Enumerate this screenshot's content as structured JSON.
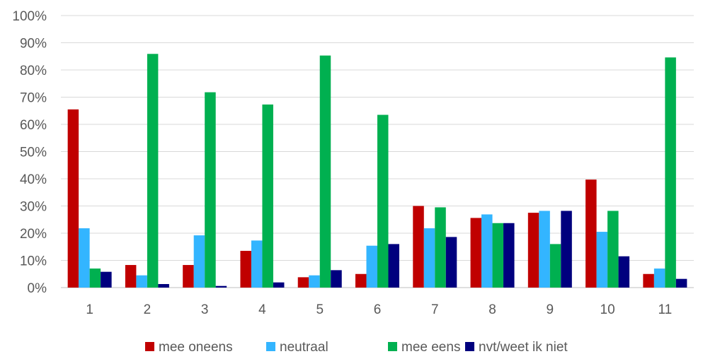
{
  "chart_data": {
    "type": "bar",
    "categories": [
      "1",
      "2",
      "3",
      "4",
      "5",
      "6",
      "7",
      "8",
      "9",
      "10",
      "11"
    ],
    "series": [
      {
        "name": "mee oneens",
        "color": "#c00000",
        "values": [
          65.5,
          8.3,
          8.3,
          13.5,
          3.8,
          5.0,
          30.0,
          25.6,
          27.5,
          39.7,
          5.0
        ]
      },
      {
        "name": "neutraal",
        "color": "#33b5ff",
        "values": [
          21.8,
          4.5,
          19.2,
          17.3,
          4.5,
          15.4,
          21.8,
          26.9,
          28.2,
          20.5,
          7.0
        ]
      },
      {
        "name": "mee eens",
        "color": "#00b050",
        "values": [
          7.0,
          85.9,
          71.8,
          67.3,
          85.3,
          63.5,
          29.5,
          23.7,
          16.0,
          28.2,
          84.6
        ]
      },
      {
        "name": "nvt/weet ik niet",
        "color": "#00007e",
        "values": [
          5.8,
          1.3,
          0.6,
          1.9,
          6.4,
          16.0,
          18.6,
          23.7,
          28.2,
          11.5,
          3.2
        ]
      }
    ],
    "ylim": [
      0,
      100
    ],
    "yticks": [
      "0%",
      "10%",
      "20%",
      "30%",
      "40%",
      "50%",
      "60%",
      "70%",
      "80%",
      "90%",
      "100%"
    ],
    "grid": true,
    "legend_position": "bottom",
    "title": "",
    "xlabel": "",
    "ylabel": ""
  }
}
